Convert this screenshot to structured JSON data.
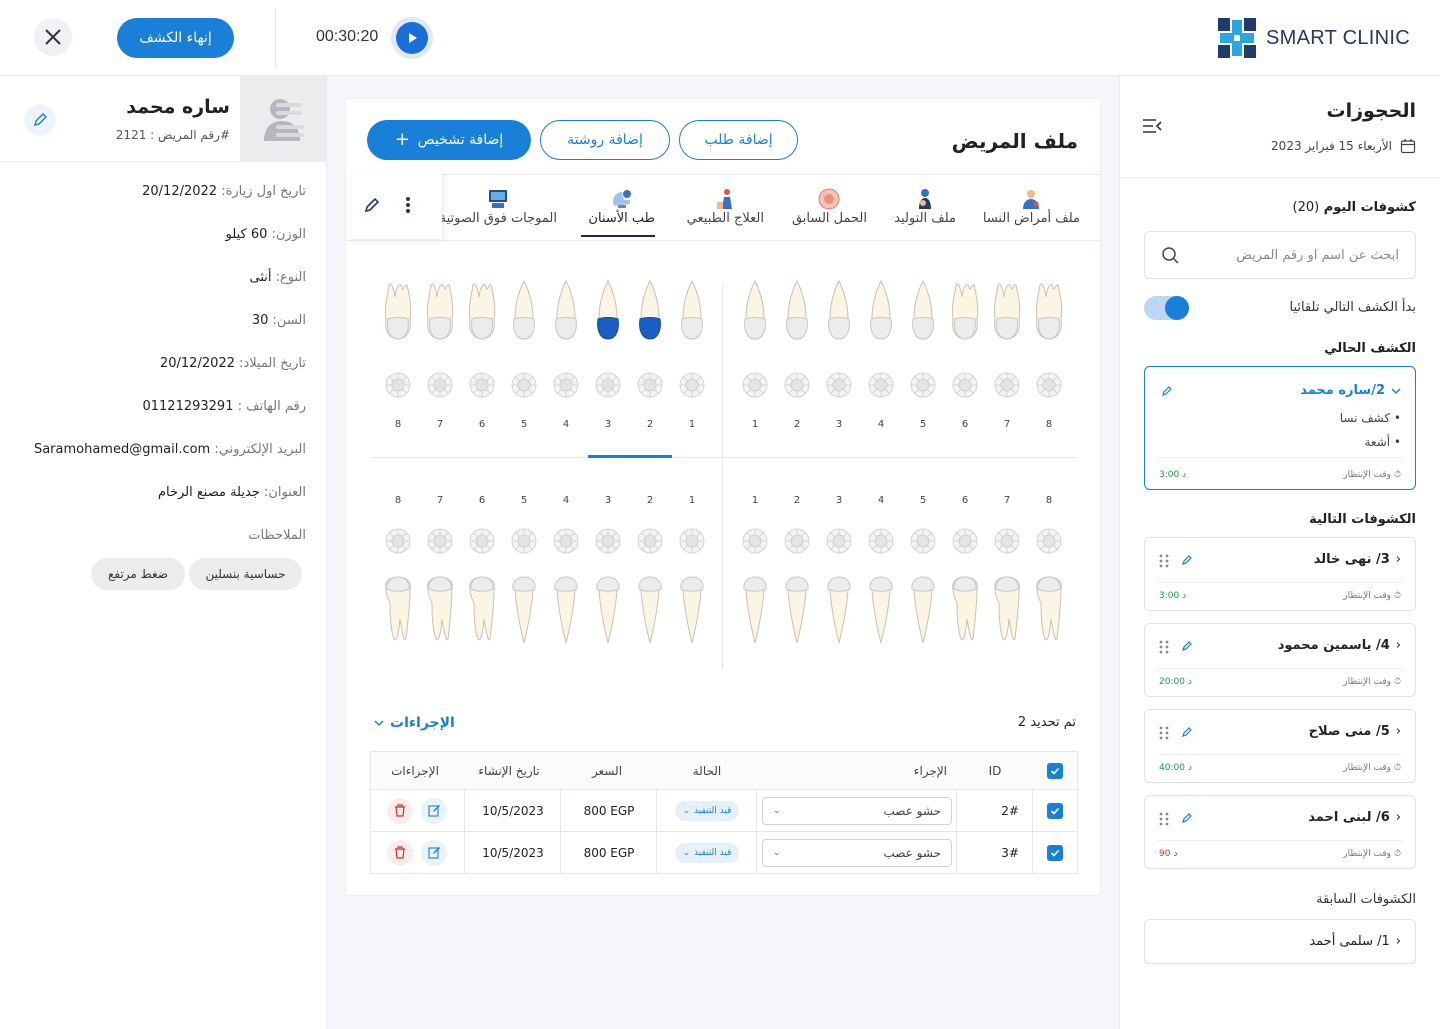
{
  "header": {
    "brand": "SMART CLINIC",
    "end_button": "إنهاء الكشف",
    "timer": "00:30:20"
  },
  "patient": {
    "name": "ساره محمد",
    "file_number": "رقم المريض : 2121#",
    "info": [
      {
        "k": "تاريخ اول زيارة:",
        "v": "20/12/2022"
      },
      {
        "k": "الوزن:",
        "v": "60 كيلو"
      },
      {
        "k": "النوع:",
        "v": "أنثى"
      },
      {
        "k": "السن:",
        "v": "30"
      },
      {
        "k": "تاريخ الميلاد:",
        "v": "20/12/2022"
      },
      {
        "k": "رقم الهاتف :",
        "v": "01121293291"
      },
      {
        "k": "البريد الإلكتروني:",
        "v": "Saramohamed@gmail.com"
      },
      {
        "k": "العنوان:",
        "v": "جديلة مصنع الرخام"
      }
    ],
    "notes_label": "الملاحظات",
    "notes": [
      "حساسية بنسلين",
      "ضغط مرتفع"
    ]
  },
  "file": {
    "title": "ملف المريض",
    "add_request": "إضافة طلب",
    "add_prescription": "إضافة روشتة",
    "add_diagnosis": "إضافة تشخيص",
    "tabs": [
      "ملف أمراض النسا",
      "ملف التوليد",
      "الحمل السابق",
      "العلاج الطبيعي",
      "طب الأسنان",
      "الموجات فوق الصوتية"
    ],
    "active_tab": "طب الأسنان",
    "tooth_numbers": [
      "1",
      "2",
      "3",
      "4",
      "5",
      "6",
      "7",
      "8"
    ],
    "selected_teeth": [
      "upper-left-2",
      "upper-left-3"
    ],
    "selected_count": "تم تحديد 2",
    "procedures_title": "الإجراءات",
    "table_head": {
      "id": "ID",
      "procedure": "الإجراء",
      "status": "الحالة",
      "price": "السعر",
      "date": "تاريخ الإنشاء",
      "actions": "الإجراءات"
    },
    "rows": [
      {
        "id": "2#",
        "procedure": "حشو عصب",
        "status": "قيد التنفيذ",
        "price": "800 EGP",
        "date": "10/5/2023"
      },
      {
        "id": "3#",
        "procedure": "حشو عصب",
        "status": "قيد التنفيذ",
        "price": "800 EGP",
        "date": "10/5/2023"
      }
    ]
  },
  "bookings": {
    "title": "الحجوزات",
    "date": "الأربعاء 15 فبراير 2023",
    "today_label": "كشوفات اليوم",
    "today_count": "(20)",
    "search_placeholder": "ابحث عن اسم او رقم المريض",
    "auto_next": "بدأ الكشف التالي تلقائيا",
    "current_label": "الكشف الحالي",
    "current": {
      "name": "2/ساره محمد",
      "items": [
        "كشف نسا",
        "أشعة"
      ],
      "wait_label": "وقت الإنتظار",
      "wait": "3:00 د"
    },
    "next_label": "الكشوفات التالية",
    "next": [
      {
        "name": "3/ نهى خالد",
        "wait": "3:00 د",
        "color": "#1a9a4a"
      },
      {
        "name": "4/ ياسمين محمود",
        "wait": "20:00 د",
        "color": "#1a9a4a"
      },
      {
        "name": "5/ منى صلاح",
        "wait": "40:00 د",
        "color": "#1a9a4a"
      },
      {
        "name": "6/ لبنى احمد",
        "wait": "90 د",
        "color": "#d32f2f"
      }
    ],
    "wait_label": "وقت الإنتظار",
    "prev_label": "الكشوفات السابقة",
    "prev": [
      {
        "name": "1/ سلمى أحمد"
      }
    ]
  }
}
